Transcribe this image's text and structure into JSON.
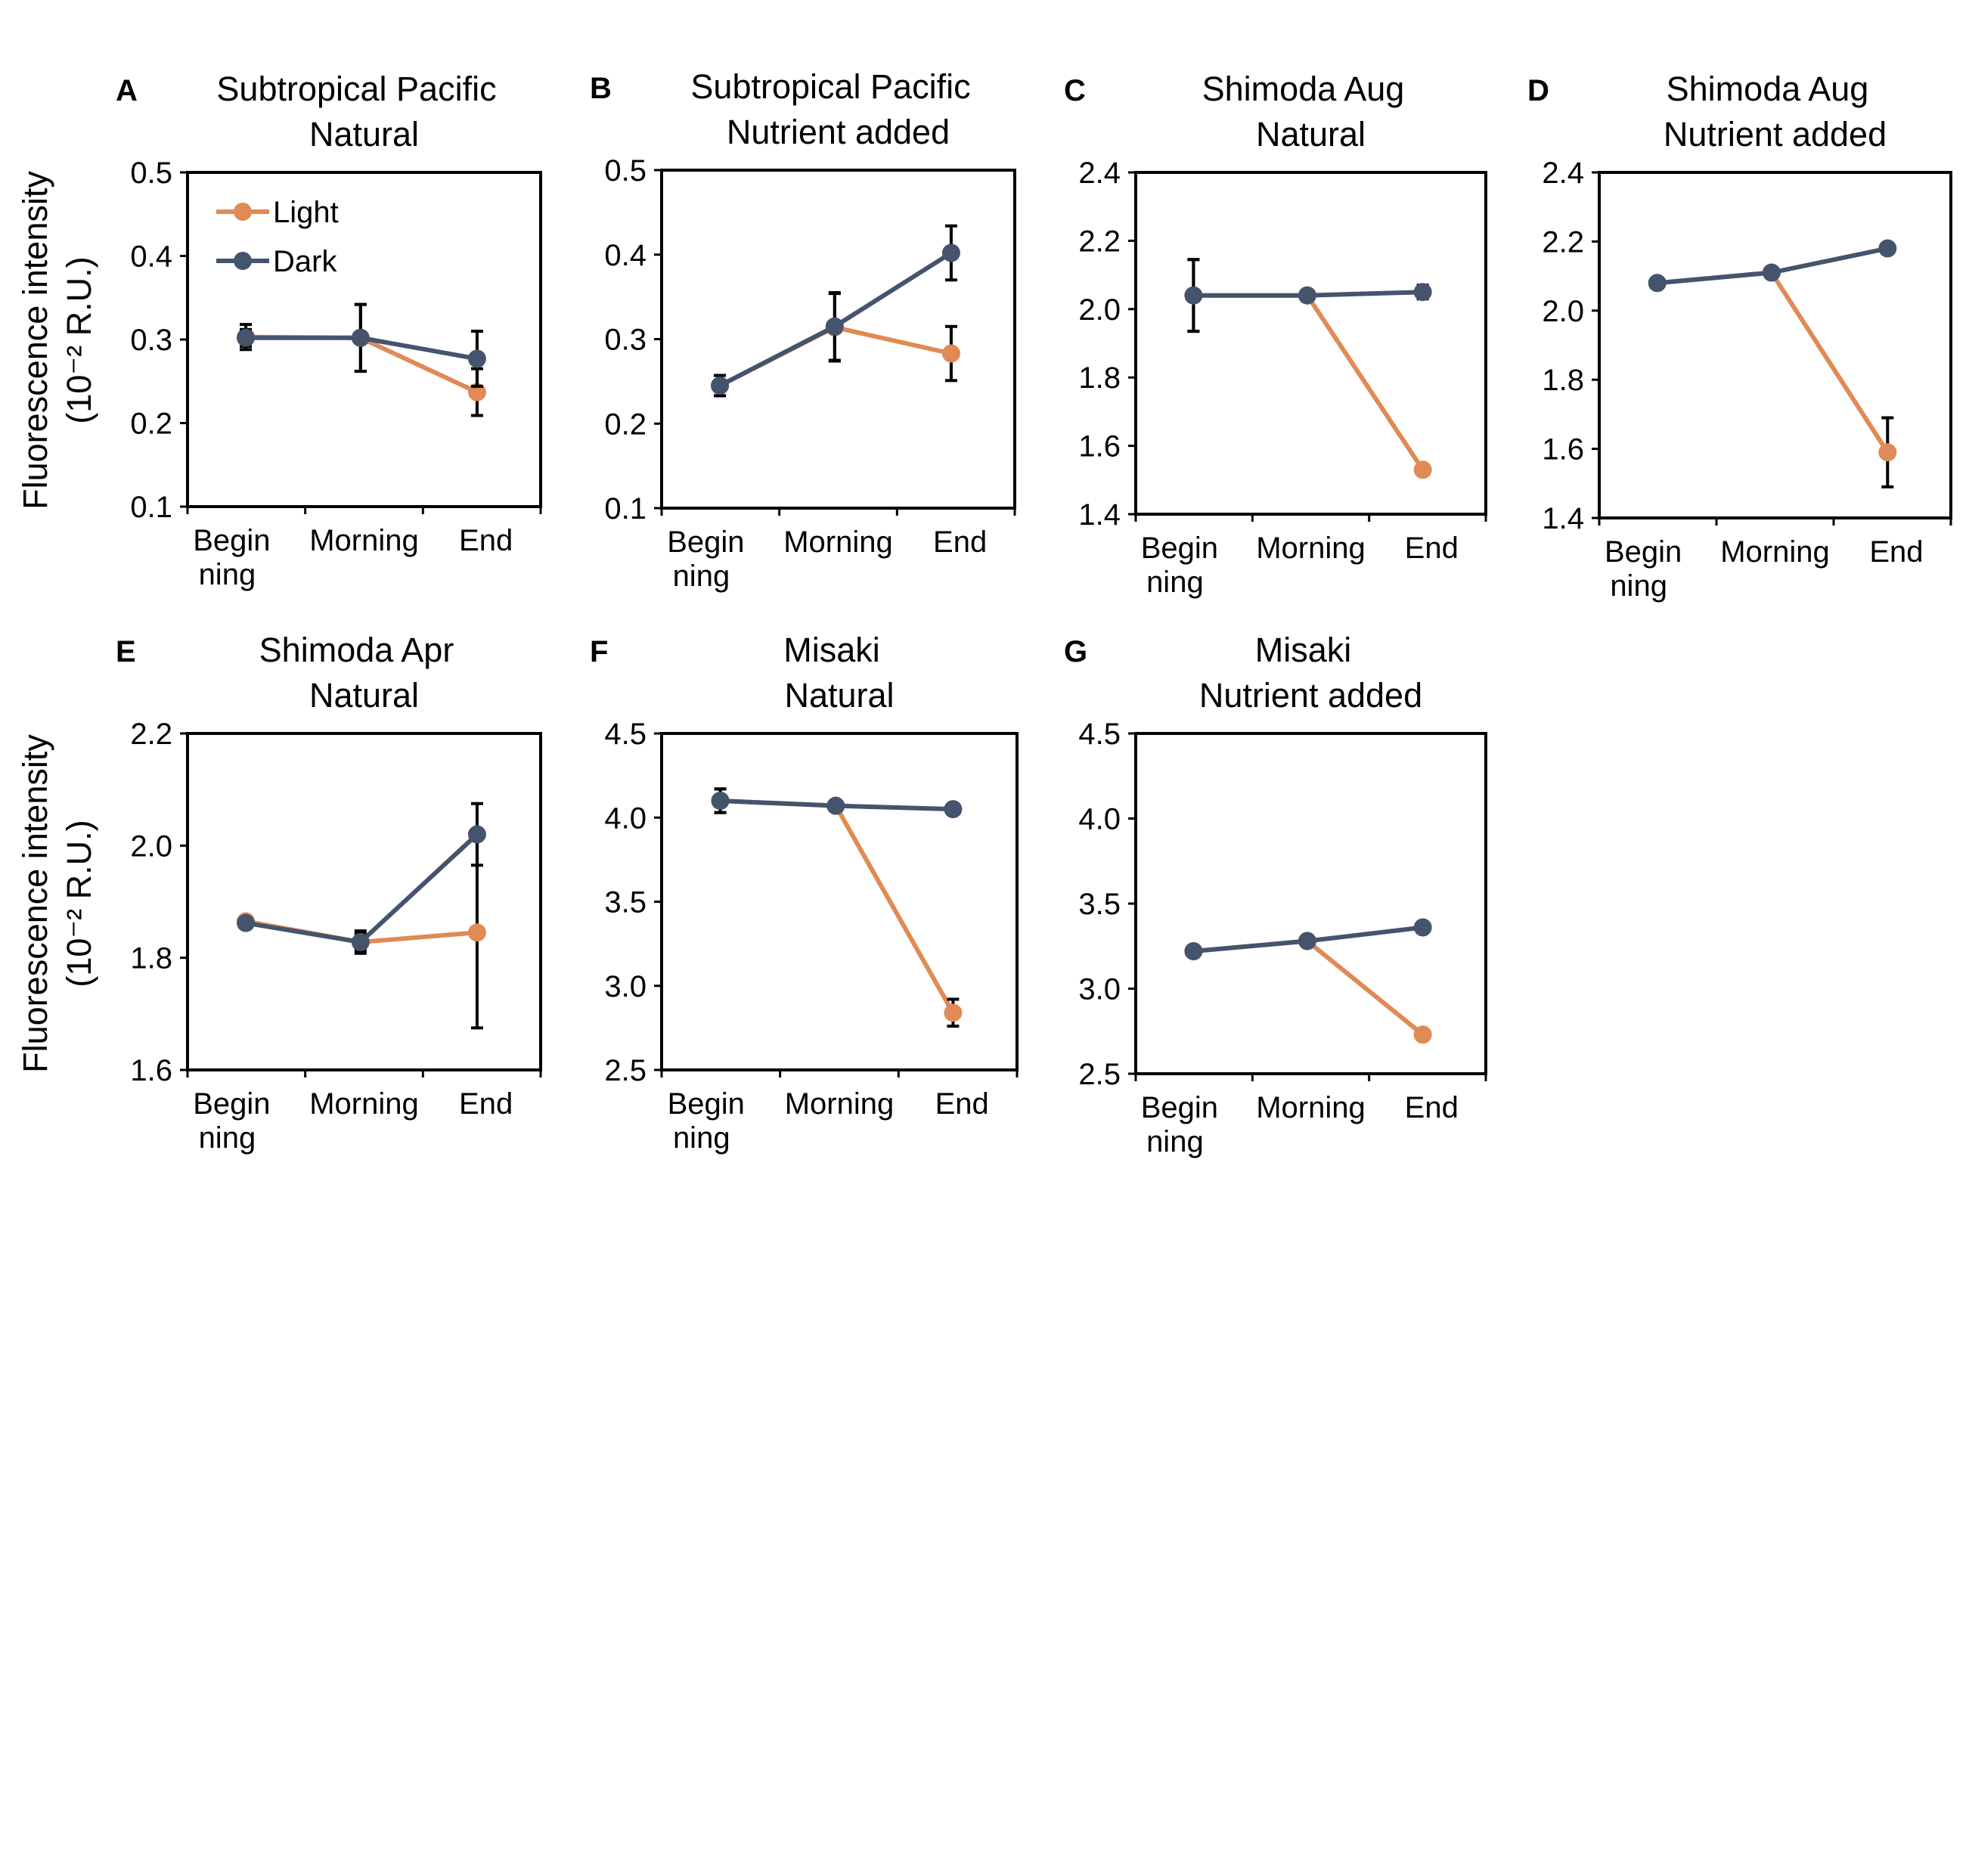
{
  "figure": {
    "y_axis_title_line1": "Fluorescence intensity",
    "y_axis_title_line2": "(10⁻² R.U.)",
    "legend": [
      {
        "name": "Light",
        "color": "#E08A55"
      },
      {
        "name": "Dark",
        "color": "#45546D"
      }
    ]
  },
  "chart_data": [
    {
      "id": "A",
      "type": "line",
      "title": [
        "Subtropical Pacific",
        "Natural"
      ],
      "categories": [
        [
          "Begin",
          "ning"
        ],
        [
          "Morning"
        ],
        [
          "End"
        ]
      ],
      "ylim": [
        0.1,
        0.5
      ],
      "yticks": [
        0.1,
        0.2,
        0.3,
        0.4,
        0.5
      ],
      "ytick_labels": [
        "0.1",
        "0.2",
        "0.3",
        "0.4",
        "0.5"
      ],
      "series": [
        {
          "name": "Light",
          "values": [
            0.303,
            0.302,
            0.237
          ],
          "errors": [
            0.015,
            0.04,
            0.028
          ]
        },
        {
          "name": "Dark",
          "values": [
            0.302,
            0.302,
            0.277
          ],
          "errors": [
            0.01,
            0.04,
            0.033
          ]
        }
      ]
    },
    {
      "id": "B",
      "type": "line",
      "title": [
        "Subtropical Pacific",
        "Nutrient added"
      ],
      "categories": [
        [
          "Begin",
          "ning"
        ],
        [
          "Morning"
        ],
        [
          "End"
        ]
      ],
      "ylim": [
        0.1,
        0.5
      ],
      "yticks": [
        0.1,
        0.2,
        0.3,
        0.4,
        0.5
      ],
      "ytick_labels": [
        "0.1",
        "0.2",
        "0.3",
        "0.4",
        "0.5"
      ],
      "series": [
        {
          "name": "Light",
          "values": [
            0.245,
            0.314,
            0.283
          ],
          "errors": [
            0.012,
            0.04,
            0.032
          ]
        },
        {
          "name": "Dark",
          "values": [
            0.245,
            0.315,
            0.402
          ],
          "errors": [
            0.012,
            0.04,
            0.032
          ]
        }
      ]
    },
    {
      "id": "C",
      "type": "line",
      "title": [
        "Shimoda Aug",
        "Natural"
      ],
      "categories": [
        [
          "Begin",
          "ning"
        ],
        [
          "Morning"
        ],
        [
          "End"
        ]
      ],
      "ylim": [
        1.4,
        2.4
      ],
      "yticks": [
        1.4,
        1.6,
        1.8,
        2.0,
        2.2,
        2.4
      ],
      "ytick_labels": [
        "1.4",
        "1.6",
        "1.8",
        "2.0",
        "2.2",
        "2.4"
      ],
      "series": [
        {
          "name": "Light",
          "values": [
            2.04,
            2.04,
            1.53
          ],
          "errors": [
            0.105,
            0.01,
            0.01
          ]
        },
        {
          "name": "Dark",
          "values": [
            2.04,
            2.04,
            2.05
          ],
          "errors": [
            0.105,
            0.01,
            0.02
          ]
        }
      ]
    },
    {
      "id": "D",
      "type": "line",
      "title": [
        "Shimoda Aug",
        "Nutrient added"
      ],
      "categories": [
        [
          "Begin",
          "ning"
        ],
        [
          "Morning"
        ],
        [
          "End"
        ]
      ],
      "ylim": [
        1.4,
        2.4
      ],
      "yticks": [
        1.4,
        1.6,
        1.8,
        2.0,
        2.2,
        2.4
      ],
      "ytick_labels": [
        "1.4",
        "1.6",
        "1.8",
        "2.0",
        "2.2",
        "2.4"
      ],
      "series": [
        {
          "name": "Light",
          "values": [
            2.08,
            2.11,
            1.59
          ],
          "errors": [
            0.0,
            0.0,
            0.1
          ]
        },
        {
          "name": "Dark",
          "values": [
            2.08,
            2.11,
            2.18
          ],
          "errors": [
            0.0,
            0.0,
            0.0
          ]
        }
      ]
    },
    {
      "id": "E",
      "type": "line",
      "title": [
        "Shimoda Apr",
        "Natural"
      ],
      "categories": [
        [
          "Begin",
          "ning"
        ],
        [
          "Morning"
        ],
        [
          "End"
        ]
      ],
      "ylim": [
        1.6,
        2.2
      ],
      "yticks": [
        1.6,
        1.8,
        2.0,
        2.2
      ],
      "ytick_labels": [
        "1.6",
        "1.8",
        "2.0",
        "2.2"
      ],
      "series": [
        {
          "name": "Light",
          "values": [
            1.865,
            1.828,
            1.845
          ],
          "errors": [
            0.0,
            0.015,
            0.17
          ]
        },
        {
          "name": "Dark",
          "values": [
            1.862,
            1.828,
            2.02
          ],
          "errors": [
            0.0,
            0.02,
            0.055
          ]
        }
      ]
    },
    {
      "id": "F",
      "type": "line",
      "title": [
        "Misaki",
        "Natural"
      ],
      "categories": [
        [
          "Begin",
          "ning"
        ],
        [
          "Morning"
        ],
        [
          "End"
        ]
      ],
      "ylim": [
        2.5,
        4.5
      ],
      "yticks": [
        2.5,
        3.0,
        3.5,
        4.0,
        4.5
      ],
      "ytick_labels": [
        "2.5",
        "3.0",
        "3.5",
        "4.0",
        "4.5"
      ],
      "series": [
        {
          "name": "Light",
          "values": [
            4.1,
            4.07,
            2.84
          ],
          "errors": [
            0.07,
            0.0,
            0.08
          ]
        },
        {
          "name": "Dark",
          "values": [
            4.1,
            4.07,
            4.05
          ],
          "errors": [
            0.07,
            0.0,
            0.0
          ]
        }
      ]
    },
    {
      "id": "G",
      "type": "line",
      "title": [
        "Misaki",
        "Nutrient added"
      ],
      "categories": [
        [
          "Begin",
          "ning"
        ],
        [
          "Morning"
        ],
        [
          "End"
        ]
      ],
      "ylim": [
        2.5,
        4.5
      ],
      "yticks": [
        2.5,
        3.0,
        3.5,
        4.0,
        4.5
      ],
      "ytick_labels": [
        "2.5",
        "3.0",
        "3.5",
        "4.0",
        "4.5"
      ],
      "series": [
        {
          "name": "Light",
          "values": [
            3.22,
            3.28,
            2.73
          ],
          "errors": [
            0.0,
            0.0,
            0.0
          ]
        },
        {
          "name": "Dark",
          "values": [
            3.22,
            3.28,
            3.36
          ],
          "errors": [
            0.0,
            0.0,
            0.0
          ]
        }
      ]
    }
  ]
}
